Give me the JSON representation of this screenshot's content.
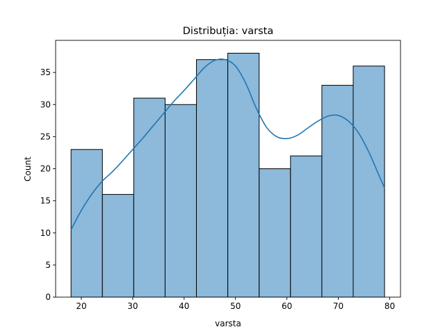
{
  "chart_data": {
    "type": "histogram",
    "title": "Distribuția: varsta",
    "xlabel": "varsta",
    "ylabel": "Count",
    "xlim": [
      15.0,
      82.1
    ],
    "ylim": [
      0,
      40
    ],
    "xticks": [
      20,
      30,
      40,
      50,
      60,
      70,
      80
    ],
    "yticks": [
      0,
      5,
      10,
      15,
      20,
      25,
      30,
      35
    ],
    "bin_edges": [
      18,
      24.1,
      30.2,
      36.3,
      42.4,
      48.5,
      54.6,
      60.7,
      66.8,
      72.9,
      79
    ],
    "values": [
      23,
      16,
      31,
      30,
      37,
      38,
      20,
      22,
      33,
      36
    ],
    "kde": {
      "x": [
        18,
        20,
        22,
        24,
        26,
        28,
        30,
        32,
        34,
        36,
        38,
        40,
        42,
        44,
        46,
        48,
        50,
        52,
        54,
        56,
        58,
        60,
        62,
        64,
        66,
        68,
        70,
        72,
        74,
        76,
        78,
        79
      ],
      "y": [
        10.5,
        13.5,
        16.0,
        18.0,
        19.5,
        21.2,
        23.0,
        24.8,
        26.7,
        28.6,
        30.5,
        32.2,
        34.0,
        35.8,
        36.9,
        37.0,
        36.0,
        33.3,
        29.5,
        26.5,
        25.0,
        24.7,
        25.2,
        26.3,
        27.4,
        28.2,
        28.3,
        27.4,
        25.5,
        22.5,
        18.8,
        17.0
      ]
    },
    "colors": {
      "bar_fill": "#8db9da",
      "bar_edge": "#000000",
      "kde_line": "#1f77b4",
      "axes": "#000000"
    },
    "grid": false,
    "legend": "none"
  }
}
